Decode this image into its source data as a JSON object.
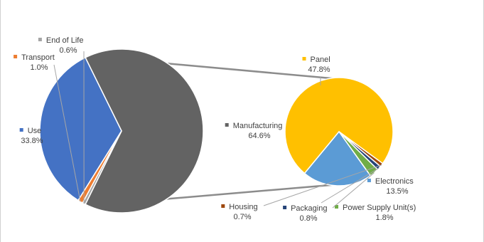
{
  "chart_data": [
    {
      "type": "pie",
      "slices": [
        {
          "name": "Manufacturing",
          "value": 64.6,
          "label": "64.6%",
          "color": "#636363"
        },
        {
          "name": "Use",
          "value": 33.8,
          "label": "33.8%",
          "color": "#4472c4"
        },
        {
          "name": "Transport",
          "value": 1.0,
          "label": "1.0%",
          "color": "#ed7d31"
        },
        {
          "name": "End of Life",
          "value": 0.6,
          "label": "0.6%",
          "color": "#a5a5a5"
        }
      ]
    },
    {
      "type": "pie",
      "slices": [
        {
          "name": "Panel",
          "value": 47.8,
          "label": "47.8%",
          "color": "#ffc000"
        },
        {
          "name": "Electronics",
          "value": 13.5,
          "label": "13.5%",
          "color": "#5b9bd5"
        },
        {
          "name": "Power Supply Unit(s)",
          "value": 1.8,
          "label": "1.8%",
          "color": "#70ad47"
        },
        {
          "name": "Packaging",
          "value": 0.8,
          "label": "0.8%",
          "color": "#264478"
        },
        {
          "name": "Housing",
          "value": 0.7,
          "label": "0.7%",
          "color": "#9e480e"
        }
      ]
    }
  ]
}
